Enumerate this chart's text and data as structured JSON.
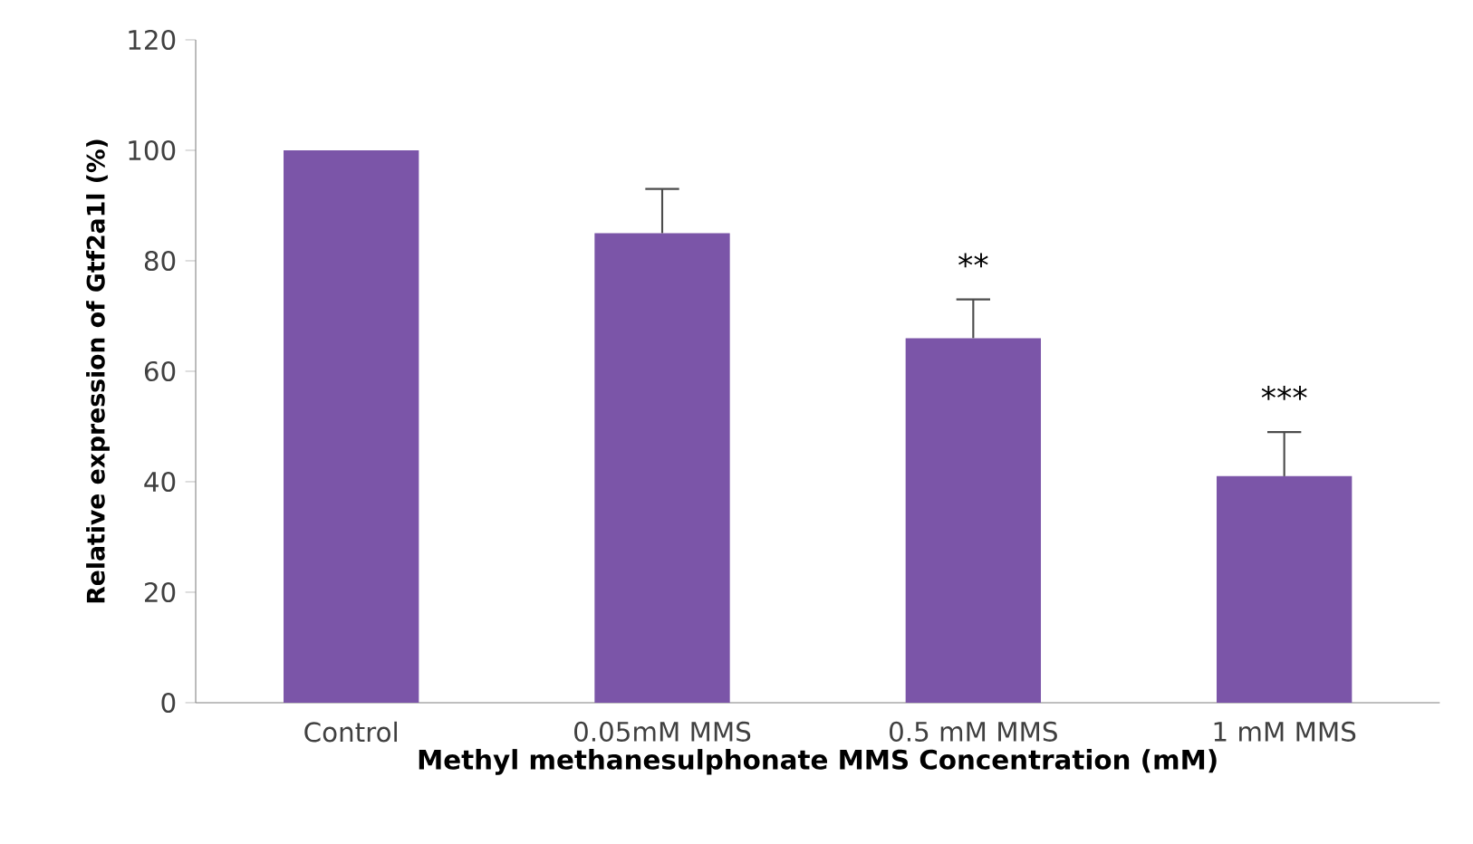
{
  "chart_data": {
    "type": "bar",
    "xlabel": "Methyl methanesulphonate MMS Concentration (mM)",
    "ylabel": "Relative expression of Gtf2a1l (%)",
    "categories": [
      "Control",
      "0.05mM MMS",
      "0.5 mM MMS",
      "1 mM MMS"
    ],
    "values": [
      100,
      85,
      66,
      41
    ],
    "errors": [
      null,
      [
        85,
        93
      ],
      [
        66,
        73
      ],
      [
        41,
        49
      ]
    ],
    "color": "#7b55a8",
    "ylim": [
      0,
      120
    ],
    "yticks": [
      0,
      20,
      40,
      60,
      80,
      100,
      120
    ],
    "grid": false,
    "annotations": [
      "**",
      "***"
    ]
  }
}
